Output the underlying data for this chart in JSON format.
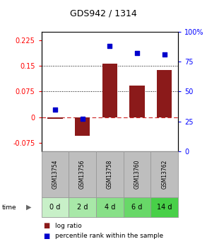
{
  "title": "GDS942 / 1314",
  "samples": [
    "GSM13754",
    "GSM13756",
    "GSM13758",
    "GSM13760",
    "GSM13762"
  ],
  "time_labels": [
    "0 d",
    "2 d",
    "4 d",
    "6 d",
    "14 d"
  ],
  "log_ratio": [
    -0.004,
    -0.055,
    0.157,
    0.093,
    0.138
  ],
  "percentile_rank": [
    35,
    27,
    88,
    82,
    81
  ],
  "bar_color": "#8B1A1A",
  "dot_color": "#0000CC",
  "left_ylim": [
    -0.1,
    0.25
  ],
  "right_ylim": [
    0,
    100
  ],
  "left_yticks": [
    -0.075,
    0,
    0.075,
    0.15,
    0.225
  ],
  "right_yticks": [
    0,
    25,
    50,
    75,
    100
  ],
  "left_ytick_labels": [
    "-0.075",
    "0",
    "0.075",
    "0.15",
    "0.225"
  ],
  "right_ytick_labels": [
    "0",
    "25",
    "50",
    "75",
    "100%"
  ],
  "hline_y": [
    0.075,
    0.15
  ],
  "zero_line_y": 0,
  "sample_box_color": "#BEBEBE",
  "time_box_colors": [
    "#C8F0C8",
    "#A8E8A8",
    "#88E088",
    "#68D868",
    "#48D048"
  ],
  "bar_width": 0.55,
  "bg_color": "#FFFFFF",
  "plot_bg_color": "#FFFFFF",
  "title_fontsize": 9,
  "tick_fontsize": 7,
  "sample_fontsize": 5.5,
  "time_fontsize": 7,
  "legend_fontsize": 6.5
}
